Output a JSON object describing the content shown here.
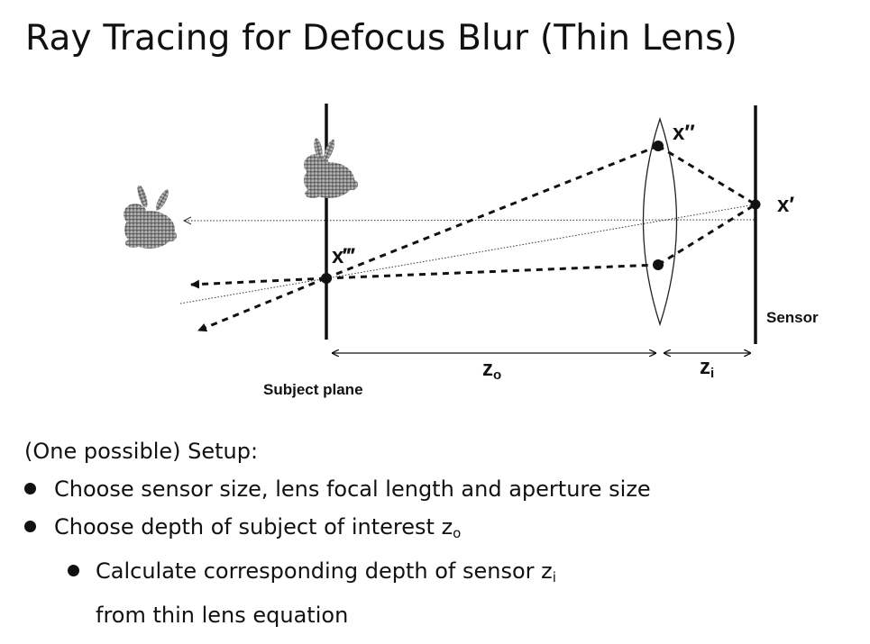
{
  "title": "Ray Tracing for Defocus Blur (Thin Lens)",
  "diagram": {
    "point_labels": {
      "x_double_prime": "x″",
      "x_prime": "x′",
      "x_triple_prime": "x‴"
    },
    "sensor_label": "Sensor",
    "subject_plane_label": "Subject plane",
    "zo_label": "z",
    "zo_sub": "o",
    "zi_label": "z",
    "zi_sub": "i",
    "bunny_icons": [
      "bunny-near",
      "bunny-far"
    ]
  },
  "setup": {
    "heading": "(One possible) Setup:",
    "bullet1": "Choose sensor size, lens focal length and aperture size",
    "bullet2": "Choose depth of subject of interest z",
    "bullet2_sub": "o",
    "bullet3": "Calculate corresponding depth of sensor z",
    "bullet3_sub": "i",
    "bullet3_cont": "from thin lens equation"
  }
}
